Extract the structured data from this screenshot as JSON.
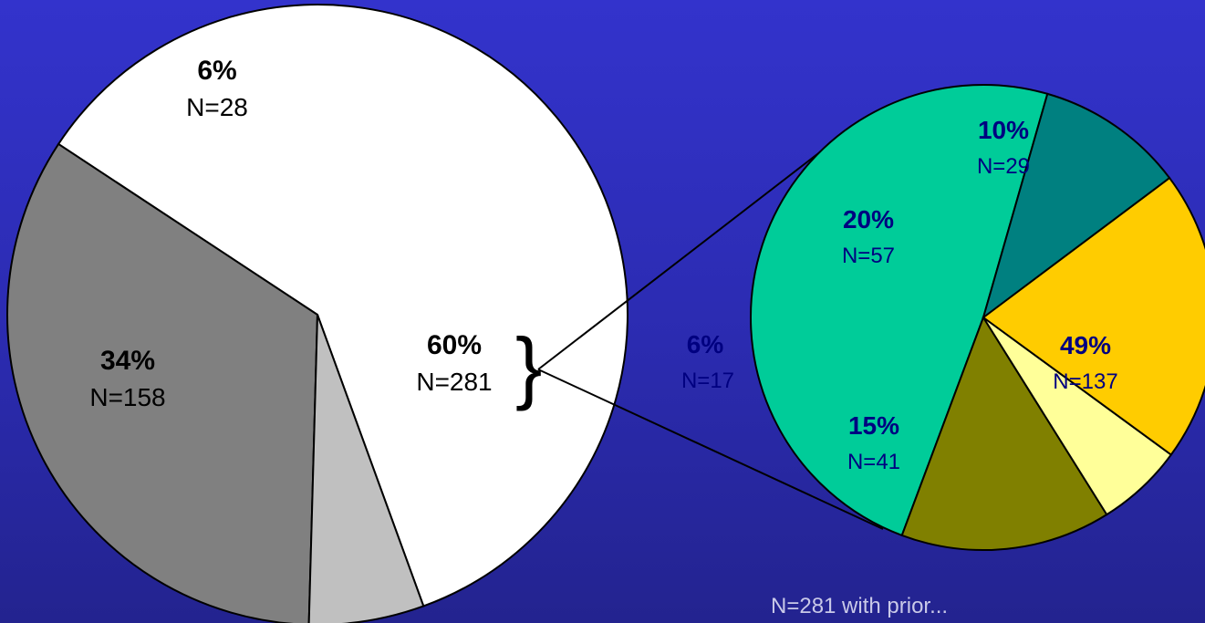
{
  "chart_data": [
    {
      "type": "pie",
      "slices": [
        {
          "percent_label": "60%",
          "count_label": "N=281",
          "value": 281,
          "color": "#ffffff",
          "text_color": "#000000"
        },
        {
          "percent_label": "34%",
          "count_label": "N=158",
          "value": 158,
          "color": "#808080",
          "text_color": "#000000"
        },
        {
          "percent_label": "6%",
          "count_label": "N=28",
          "value": 28,
          "color": "#c0c0c0",
          "text_color": "#000000"
        }
      ]
    },
    {
      "type": "pie",
      "breakdown_of": "60%",
      "slices": [
        {
          "percent_label": "49%",
          "count_label": "N=137",
          "value": 137,
          "color": "#00cc99",
          "text_color": "#000080"
        },
        {
          "percent_label": "15%",
          "count_label": "N=41",
          "value": 41,
          "color": "#808000",
          "text_color": "#000080"
        },
        {
          "percent_label": "6%",
          "count_label": "N=17",
          "value": 17,
          "color": "#ffff99",
          "text_color": "#000080"
        },
        {
          "percent_label": "20%",
          "count_label": "N=57",
          "value": 57,
          "color": "#ffcc00",
          "text_color": "#000080"
        },
        {
          "percent_label": "10%",
          "count_label": "N=29",
          "value": 29,
          "color": "#008080",
          "text_color": "#000080"
        }
      ]
    }
  ],
  "brace_glyph": "}",
  "footnote": "N=281 with prior... ",
  "colors": {
    "background": "#3333cc",
    "outline": "#000000"
  }
}
